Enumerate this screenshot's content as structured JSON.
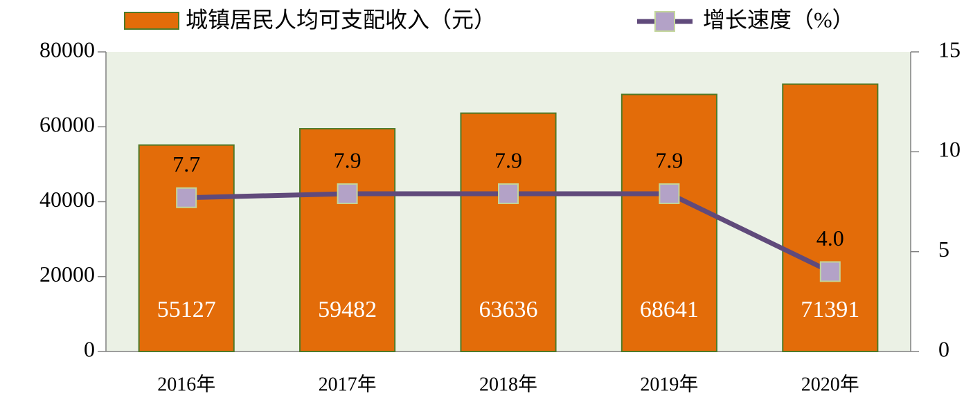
{
  "chart_data": {
    "type": "bar",
    "categories": [
      "2016年",
      "2017年",
      "2018年",
      "2019年",
      "2020年"
    ],
    "series": [
      {
        "name": "城镇居民人均可支配收入（元）",
        "type": "bar",
        "color": "#e36c09",
        "values": [
          55127,
          59482,
          63636,
          68641,
          71391
        ]
      },
      {
        "name": "增长速度（%）",
        "type": "line",
        "axis": "y2",
        "color": "#604a7b",
        "values": [
          7.7,
          7.9,
          7.9,
          7.9,
          4.0
        ],
        "value_labels": [
          "7.7",
          "7.9",
          "7.9",
          "7.9",
          "4.0"
        ]
      }
    ],
    "ylim": [
      0,
      80000
    ],
    "yticks": [
      0,
      20000,
      40000,
      60000,
      80000
    ],
    "y2lim": [
      0,
      15
    ],
    "y2ticks": [
      0,
      5,
      10,
      15
    ],
    "plot_background": "#ebf1e5"
  }
}
